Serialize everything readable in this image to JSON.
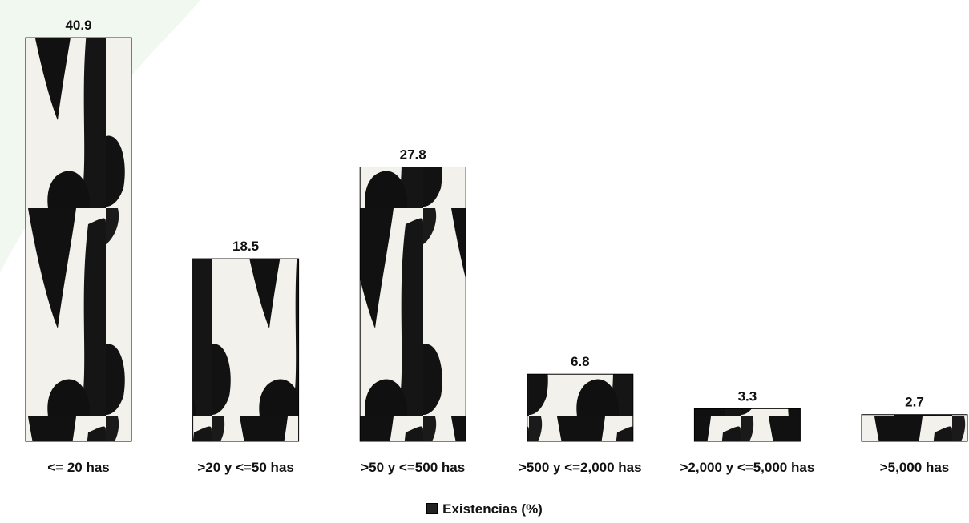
{
  "chart_data": {
    "type": "bar",
    "categories": [
      "<= 20 has",
      ">20 y <=50 has",
      ">50 y <=500 has",
      ">500 y <=2,000 has",
      ">2,000  y <=5,000 has",
      ">5,000 has"
    ],
    "series": [
      {
        "name": "Existencias (%)",
        "values": [
          40.9,
          18.5,
          27.8,
          6.8,
          3.3,
          2.7
        ]
      }
    ]
  }
}
